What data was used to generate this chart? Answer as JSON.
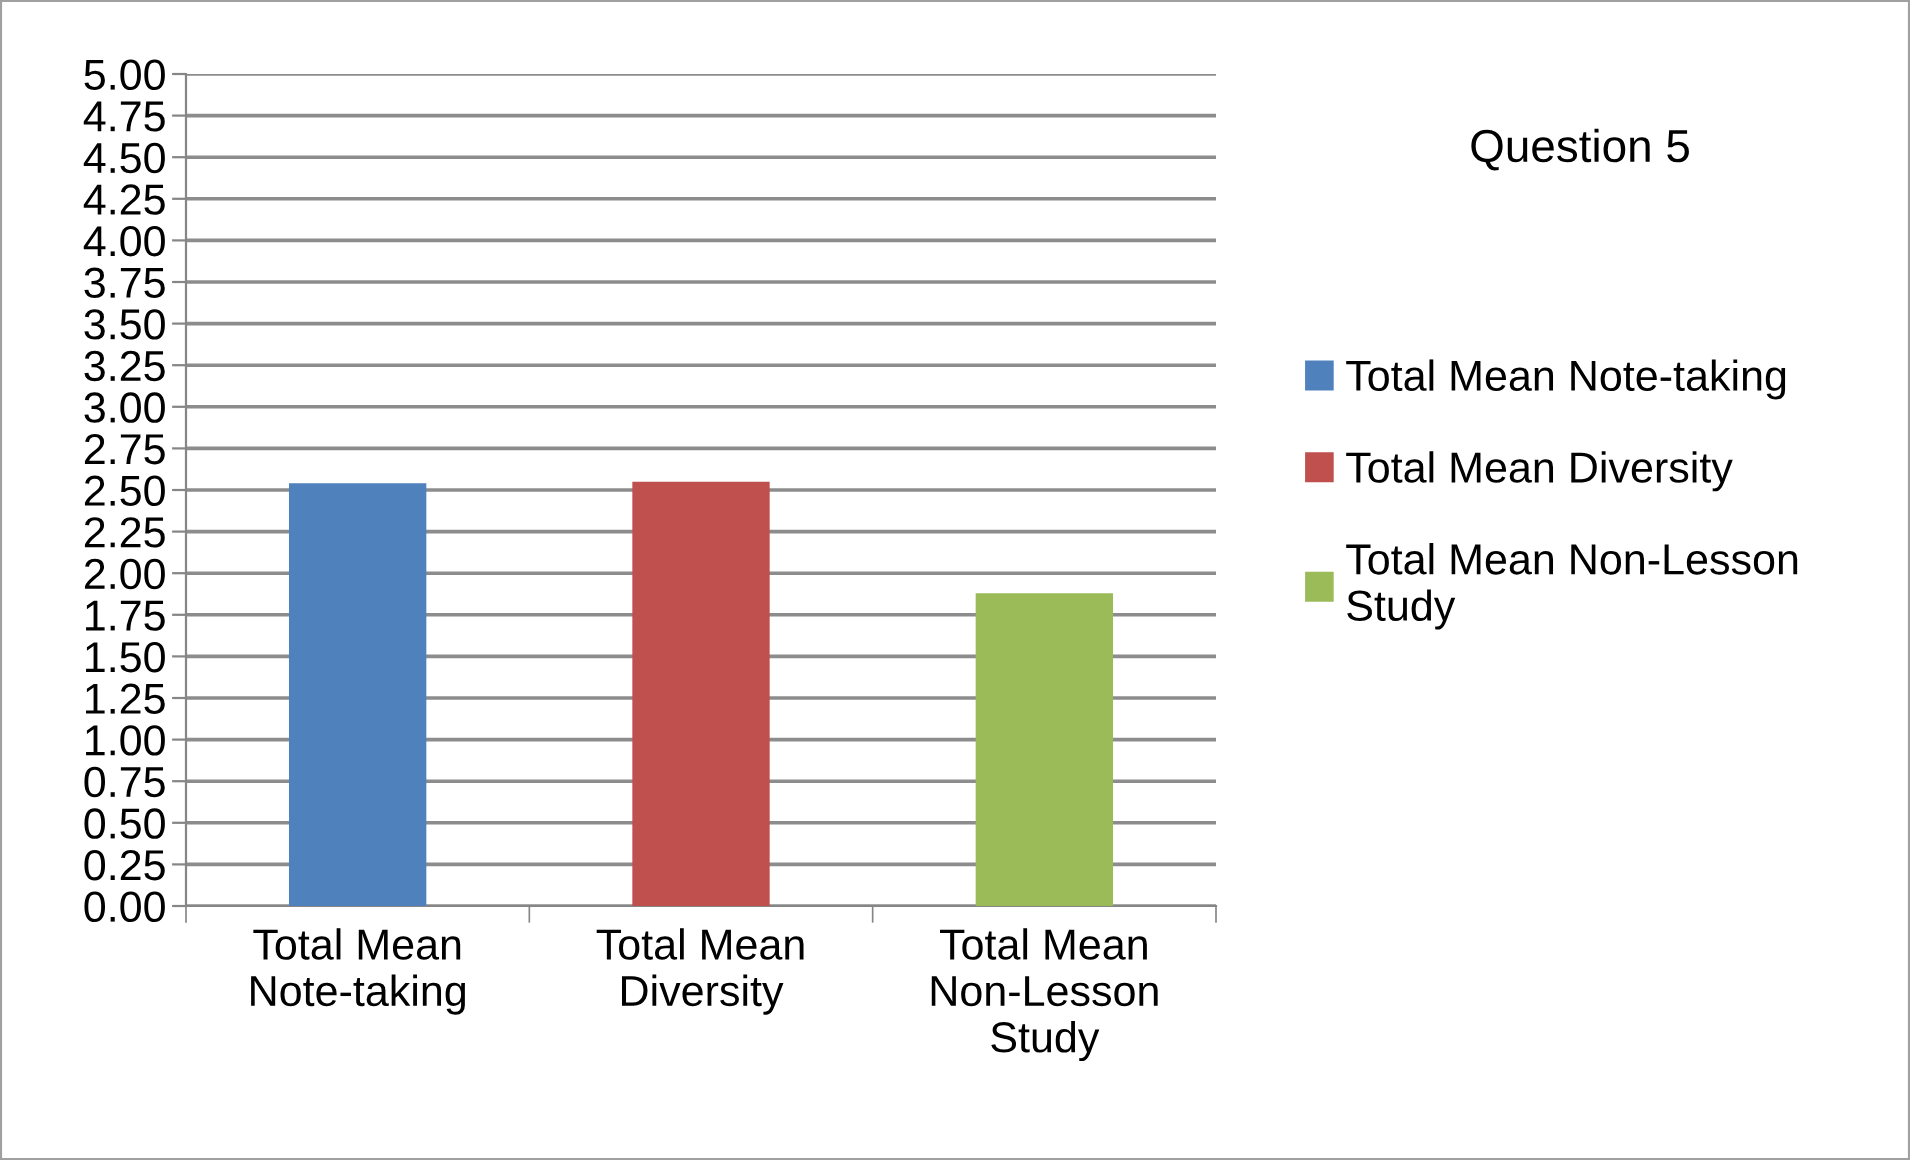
{
  "chart_data": {
    "type": "bar",
    "title": "Question 5",
    "categories": [
      "Total Mean\nNote-taking",
      "Total Mean\nDiversity",
      "Total Mean\nNon-Lesson\nStudy"
    ],
    "series": [
      {
        "name": "Total Mean Note-taking",
        "color": "#4f81bd",
        "values": [
          2.54,
          null,
          null
        ]
      },
      {
        "name": "Total Mean Diversity",
        "color": "#c0504d",
        "values": [
          null,
          2.55,
          null
        ]
      },
      {
        "name": "Total Mean Non-Lesson\nStudy",
        "color": "#9bbb59",
        "values": [
          null,
          null,
          1.88
        ]
      }
    ],
    "ylim": [
      0,
      5
    ],
    "yticks": [
      {
        "value": 0,
        "label": "0.00"
      },
      {
        "value": 0.25,
        "label": "0.25"
      },
      {
        "value": 0.5,
        "label": "0.50"
      },
      {
        "value": 0.75,
        "label": "0.75"
      },
      {
        "value": 1,
        "label": "1.00"
      },
      {
        "value": 1.25,
        "label": "1.25"
      },
      {
        "value": 1.5,
        "label": "1.50"
      },
      {
        "value": 1.75,
        "label": "1.75"
      },
      {
        "value": 2,
        "label": "2.00"
      },
      {
        "value": 2.25,
        "label": "2.25"
      },
      {
        "value": 2.5,
        "label": "2.50"
      },
      {
        "value": 2.75,
        "label": "2.75"
      },
      {
        "value": 3,
        "label": "3.00"
      },
      {
        "value": 3.25,
        "label": "3.25"
      },
      {
        "value": 3.5,
        "label": "3.50"
      },
      {
        "value": 3.75,
        "label": "3.75"
      },
      {
        "value": 4,
        "label": "4.00"
      },
      {
        "value": 4.25,
        "label": "4.25"
      },
      {
        "value": 4.5,
        "label": "4.50"
      },
      {
        "value": 4.75,
        "label": "4.75"
      },
      {
        "value": 5,
        "label": "5.00"
      }
    ],
    "grid": "y",
    "legend": "right"
  }
}
